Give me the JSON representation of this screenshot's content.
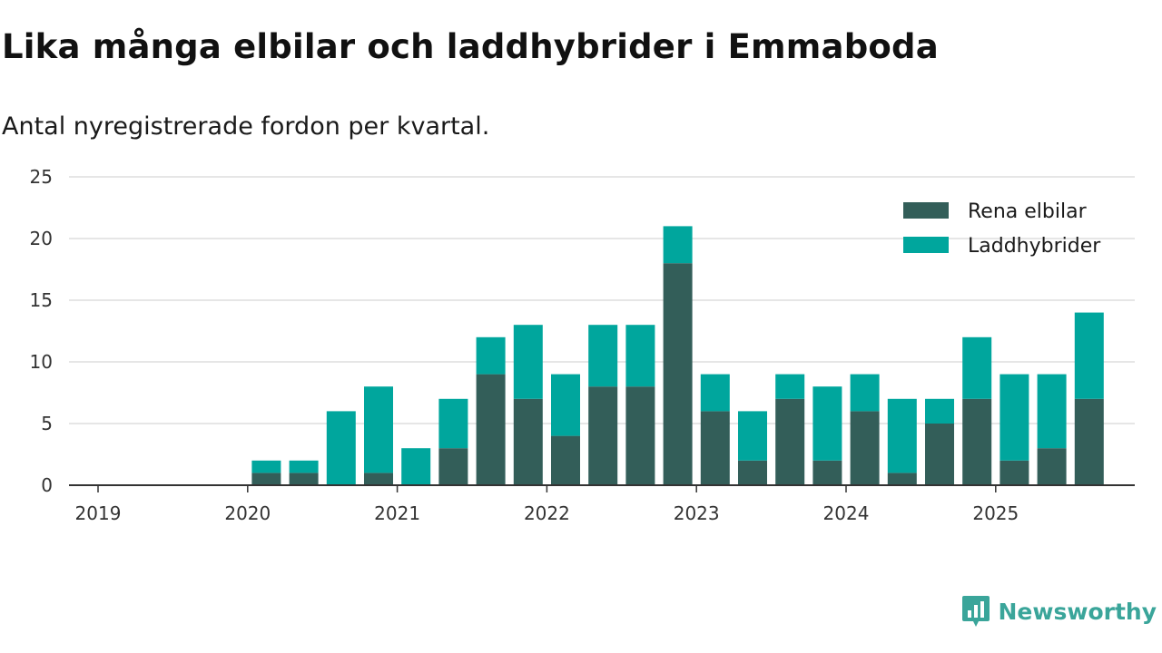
{
  "title": "Lika många elbilar och laddhybrider i Emmaboda",
  "subtitle": "Antal nyregistrerade fordon per kvartal.",
  "brand": {
    "name": "Newsworthy",
    "icon": "newsworthy-logo-icon"
  },
  "colors": {
    "elbilar": "#335e59",
    "laddhybrider": "#00a69d",
    "grid": "#dddddd",
    "axis": "#333333"
  },
  "chart_data": {
    "type": "bar",
    "stacked": true,
    "title": "Lika många elbilar och laddhybrider i Emmaboda",
    "subtitle": "Antal nyregistrerade fordon per kvartal.",
    "xlabel": "",
    "ylabel": "",
    "ylim": [
      0,
      25
    ],
    "yticks": [
      0,
      5,
      10,
      15,
      20,
      25
    ],
    "xticks": [
      "2019",
      "2020",
      "2021",
      "2022",
      "2023",
      "2024",
      "2025"
    ],
    "grid": true,
    "legend_position": "top-right",
    "categories": [
      "2019 Q1",
      "2019 Q2",
      "2019 Q3",
      "2019 Q4",
      "2020 Q1",
      "2020 Q2",
      "2020 Q3",
      "2020 Q4",
      "2021 Q1",
      "2021 Q2",
      "2021 Q3",
      "2021 Q4",
      "2022 Q1",
      "2022 Q2",
      "2022 Q3",
      "2022 Q4",
      "2023 Q1",
      "2023 Q2",
      "2023 Q3",
      "2023 Q4",
      "2024 Q1",
      "2024 Q2",
      "2024 Q3",
      "2024 Q4",
      "2025 Q1",
      "2025 Q2",
      "2025 Q3"
    ],
    "series": [
      {
        "name": "Rena elbilar",
        "values": [
          0,
          0,
          0,
          0,
          1,
          1,
          0,
          1,
          0,
          3,
          9,
          7,
          4,
          8,
          8,
          18,
          6,
          2,
          7,
          2,
          6,
          1,
          5,
          7,
          2,
          3,
          7
        ]
      },
      {
        "name": "Laddhybrider",
        "values": [
          0,
          0,
          0,
          0,
          1,
          1,
          6,
          7,
          3,
          4,
          3,
          6,
          5,
          5,
          5,
          3,
          3,
          4,
          2,
          6,
          3,
          6,
          2,
          5,
          7,
          6,
          7
        ]
      }
    ]
  }
}
